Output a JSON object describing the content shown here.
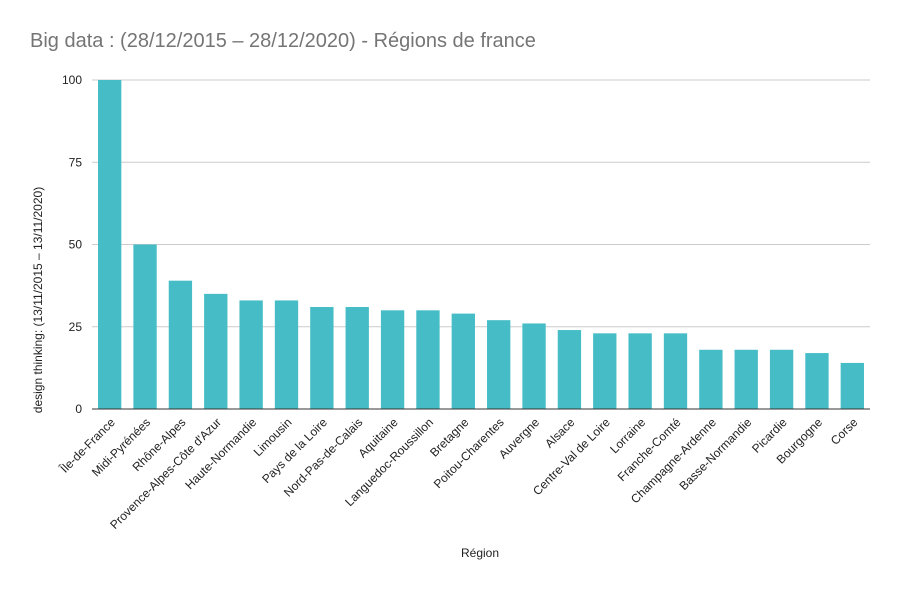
{
  "chart_data": {
    "type": "bar",
    "title": "Big data : (28/12/2015 – 28/12/2020) - Régions de france",
    "xlabel": "Région",
    "ylabel": "design thinking: (13/11/2015 – 13/11/2020)",
    "ylim": [
      0,
      100
    ],
    "yticks": [
      0,
      25,
      50,
      75,
      100
    ],
    "grid": true,
    "bar_color": "#46bdc6",
    "categories": [
      "Île-de-France",
      "Midi-Pyrénées",
      "Rhône-Alpes",
      "Provence-Alpes-Côte d'Azur",
      "Haute-Normandie",
      "Limousin",
      "Pays de la Loire",
      "Nord-Pas-de-Calais",
      "Aquitaine",
      "Languedoc-Roussillon",
      "Bretagne",
      "Poitou-Charentes",
      "Auvergne",
      "Alsace",
      "Centre-Val de Loire",
      "Lorraine",
      "Franche-Comté",
      "Champagne-Ardenne",
      "Basse-Normandie",
      "Picardie",
      "Bourgogne",
      "Corse"
    ],
    "values": [
      100,
      50,
      39,
      35,
      33,
      33,
      31,
      31,
      30,
      30,
      29,
      27,
      26,
      24,
      23,
      23,
      23,
      18,
      18,
      18,
      17,
      14
    ]
  }
}
